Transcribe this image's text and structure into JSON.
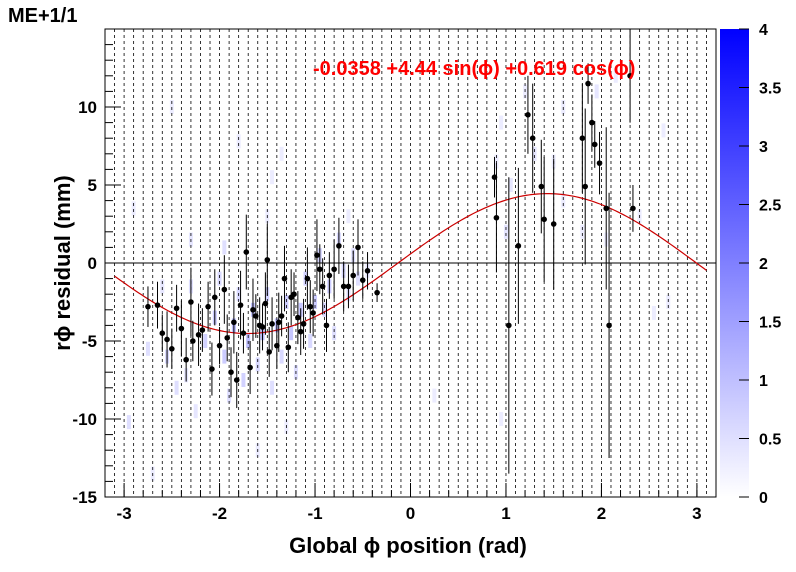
{
  "title": "ME+1/1",
  "fit_label": "-0.0358 +4.44 sin(ϕ) +0.619 cos(ϕ)",
  "colors": {
    "fit": "#cc0000",
    "fit_text": "#ff0000",
    "points": "#000000",
    "palette_max": "#0000ff"
  },
  "chart_data": {
    "type": "scatter",
    "title": "ME+1/1",
    "xlabel": "Global ϕ position (rad)",
    "ylabel": "rϕ residual (mm)",
    "xlim": [
      -3.2,
      3.2
    ],
    "ylim": [
      -15,
      15
    ],
    "x_ticks": [
      -3,
      -2,
      -1,
      0,
      1,
      2,
      3
    ],
    "y_ticks": [
      -15,
      -10,
      -5,
      0,
      5,
      10
    ],
    "x_tick_labels": [
      "-3",
      "-2",
      "-1",
      "0",
      "1",
      "2",
      "3"
    ],
    "y_tick_labels": [
      "-15",
      "-10",
      "-5",
      "0",
      "5",
      "10"
    ],
    "colorbar": {
      "min": 0,
      "max": 4,
      "ticks": [
        0,
        0.5,
        1,
        1.5,
        2,
        2.5,
        3,
        3.5,
        4
      ],
      "tick_labels": [
        "0",
        "0.5",
        "1",
        "1.5",
        "2",
        "2.5",
        "3",
        "3.5",
        "4"
      ]
    },
    "fit": {
      "a": -0.0358,
      "b": 4.44,
      "c": 0.619
    },
    "grid": "vertical dashed",
    "points": [
      {
        "x": -2.75,
        "y": -2.8,
        "err": 1.3
      },
      {
        "x": -2.65,
        "y": -2.7,
        "err": 1.5
      },
      {
        "x": -2.6,
        "y": -4.5,
        "err": 1.2
      },
      {
        "x": -2.55,
        "y": -4.9,
        "err": 1.8
      },
      {
        "x": -2.5,
        "y": -5.5,
        "err": 1.3
      },
      {
        "x": -2.45,
        "y": -2.9,
        "err": 1.5
      },
      {
        "x": -2.4,
        "y": -4.2,
        "err": 1.8
      },
      {
        "x": -2.35,
        "y": -6.2,
        "err": 1.4
      },
      {
        "x": -2.3,
        "y": -2.5,
        "err": 2.2
      },
      {
        "x": -2.28,
        "y": -5.0,
        "err": 1.3
      },
      {
        "x": -2.22,
        "y": -4.6,
        "err": 2.0
      },
      {
        "x": -2.18,
        "y": -4.3,
        "err": 1.4
      },
      {
        "x": -2.12,
        "y": -2.8,
        "err": 1.6
      },
      {
        "x": -2.08,
        "y": -6.8,
        "err": 1.7
      },
      {
        "x": -2.05,
        "y": -2.2,
        "err": 1.8
      },
      {
        "x": -2.0,
        "y": -5.3,
        "err": 1.2
      },
      {
        "x": -1.95,
        "y": -1.7,
        "err": 2.2
      },
      {
        "x": -1.92,
        "y": -4.8,
        "err": 1.5
      },
      {
        "x": -1.88,
        "y": -7.0,
        "err": 1.6
      },
      {
        "x": -1.85,
        "y": -3.8,
        "err": 2.0
      },
      {
        "x": -1.82,
        "y": -7.5,
        "err": 1.8
      },
      {
        "x": -1.78,
        "y": -2.7,
        "err": 2.2
      },
      {
        "x": -1.75,
        "y": -4.5,
        "err": 1.3
      },
      {
        "x": -1.72,
        "y": 0.7,
        "err": 2.4
      },
      {
        "x": -1.68,
        "y": -6.7,
        "err": 1.7
      },
      {
        "x": -1.65,
        "y": -3.0,
        "err": 2.0
      },
      {
        "x": -1.62,
        "y": -3.4,
        "err": 1.4
      },
      {
        "x": -1.58,
        "y": -4.0,
        "err": 1.8
      },
      {
        "x": -1.55,
        "y": -4.1,
        "err": 1.5
      },
      {
        "x": -1.52,
        "y": -2.6,
        "err": 2.0
      },
      {
        "x": -1.5,
        "y": 0.2,
        "err": 2.3
      },
      {
        "x": -1.48,
        "y": -5.7,
        "err": 1.6
      },
      {
        "x": -1.45,
        "y": -3.9,
        "err": 1.7
      },
      {
        "x": -1.4,
        "y": -5.3,
        "err": 1.5
      },
      {
        "x": -1.38,
        "y": -3.8,
        "err": 1.9
      },
      {
        "x": -1.35,
        "y": -3.4,
        "err": 1.3
      },
      {
        "x": -1.32,
        "y": -1.0,
        "err": 2.1
      },
      {
        "x": -1.28,
        "y": -5.4,
        "err": 1.6
      },
      {
        "x": -1.25,
        "y": -2.2,
        "err": 1.8
      },
      {
        "x": -1.22,
        "y": -2.0,
        "err": 1.4
      },
      {
        "x": -1.18,
        "y": -3.5,
        "err": 1.7
      },
      {
        "x": -1.15,
        "y": -4.4,
        "err": 1.5
      },
      {
        "x": -1.12,
        "y": -3.9,
        "err": 1.6
      },
      {
        "x": -1.08,
        "y": -1.0,
        "err": 2.0
      },
      {
        "x": -1.05,
        "y": -2.8,
        "err": 1.7
      },
      {
        "x": -1.02,
        "y": -3.2,
        "err": 1.5
      },
      {
        "x": -0.98,
        "y": 0.5,
        "err": 2.3
      },
      {
        "x": -0.95,
        "y": -0.4,
        "err": 1.6
      },
      {
        "x": -0.92,
        "y": -1.5,
        "err": 1.8
      },
      {
        "x": -0.88,
        "y": -4.0,
        "err": 1.7
      },
      {
        "x": -0.85,
        "y": -0.8,
        "err": 1.5
      },
      {
        "x": -0.8,
        "y": -0.4,
        "err": 1.9
      },
      {
        "x": -0.75,
        "y": 1.1,
        "err": 1.8
      },
      {
        "x": -0.7,
        "y": -1.5,
        "err": 1.6
      },
      {
        "x": -0.65,
        "y": -1.5,
        "err": 1.4
      },
      {
        "x": -0.6,
        "y": -0.8,
        "err": 1.6
      },
      {
        "x": -0.55,
        "y": 1.0,
        "err": 1.8
      },
      {
        "x": -0.5,
        "y": -1.1,
        "err": 1.2
      },
      {
        "x": -0.45,
        "y": -0.5,
        "err": 1.2
      },
      {
        "x": -0.35,
        "y": -1.9,
        "err": 0.6
      },
      {
        "x": 0.88,
        "y": 5.5,
        "err": 1.3
      },
      {
        "x": 0.9,
        "y": 2.9,
        "err": 3.5
      },
      {
        "x": 1.03,
        "y": -4.0,
        "err": 9.5
      },
      {
        "x": 1.13,
        "y": 1.1,
        "err": 5.0
      },
      {
        "x": 1.23,
        "y": 9.5,
        "err": 2.5
      },
      {
        "x": 1.28,
        "y": 8.0,
        "err": 3.5
      },
      {
        "x": 1.37,
        "y": 4.9,
        "err": 3.0
      },
      {
        "x": 1.4,
        "y": 2.8,
        "err": 4.0
      },
      {
        "x": 1.5,
        "y": 2.5,
        "err": 4.2
      },
      {
        "x": 1.8,
        "y": 8.0,
        "err": 3.5
      },
      {
        "x": 1.83,
        "y": 4.9,
        "err": 5.0
      },
      {
        "x": 1.86,
        "y": 11.5,
        "err": 1.3
      },
      {
        "x": 1.9,
        "y": 9.0,
        "err": 1.8
      },
      {
        "x": 1.93,
        "y": 7.6,
        "err": 1.5
      },
      {
        "x": 1.98,
        "y": 6.4,
        "err": 2.0
      },
      {
        "x": 2.05,
        "y": 3.5,
        "err": 5.2
      },
      {
        "x": 2.08,
        "y": -4.0,
        "err": 8.5
      },
      {
        "x": 2.3,
        "y": 12.0,
        "err": 3.0
      },
      {
        "x": 2.33,
        "y": 3.5,
        "err": 1.5
      }
    ],
    "heat_cells": [
      {
        "x": -2.95,
        "y": -10.2,
        "z": 0.5
      },
      {
        "x": -2.7,
        "y": -13.5,
        "z": 0.3
      },
      {
        "x": -2.75,
        "y": -5.5,
        "z": 0.5
      },
      {
        "x": -2.55,
        "y": -6.0,
        "z": 0.6
      },
      {
        "x": -2.45,
        "y": -8.0,
        "z": 0.5
      },
      {
        "x": -2.35,
        "y": -7.2,
        "z": 0.4
      },
      {
        "x": -2.3,
        "y": -1.5,
        "z": 0.5
      },
      {
        "x": -2.25,
        "y": -9.5,
        "z": 0.4
      },
      {
        "x": -2.15,
        "y": -5.0,
        "z": 0.7
      },
      {
        "x": -2.05,
        "y": -3.5,
        "z": 0.8
      },
      {
        "x": -2.0,
        "y": -1.0,
        "z": 0.6
      },
      {
        "x": -1.95,
        "y": -6.0,
        "z": 0.8
      },
      {
        "x": -1.9,
        "y": -8.5,
        "z": 0.5
      },
      {
        "x": -1.85,
        "y": -4.0,
        "z": 1.0
      },
      {
        "x": -1.8,
        "y": -2.0,
        "z": 0.6
      },
      {
        "x": -1.75,
        "y": -7.5,
        "z": 0.7
      },
      {
        "x": -1.7,
        "y": -5.0,
        "z": 1.0
      },
      {
        "x": -1.65,
        "y": -3.0,
        "z": 0.9
      },
      {
        "x": -1.6,
        "y": -6.5,
        "z": 0.6
      },
      {
        "x": -1.55,
        "y": -4.5,
        "z": 1.1
      },
      {
        "x": -1.5,
        "y": -2.0,
        "z": 0.7
      },
      {
        "x": -1.45,
        "y": -8.0,
        "z": 0.5
      },
      {
        "x": -1.4,
        "y": -4.0,
        "z": 1.0
      },
      {
        "x": -1.35,
        "y": -6.0,
        "z": 0.6
      },
      {
        "x": -1.3,
        "y": -2.5,
        "z": 0.8
      },
      {
        "x": -1.25,
        "y": -4.5,
        "z": 0.9
      },
      {
        "x": -1.2,
        "y": -7.0,
        "z": 0.5
      },
      {
        "x": -1.15,
        "y": -3.0,
        "z": 0.9
      },
      {
        "x": -1.1,
        "y": -1.0,
        "z": 0.7
      },
      {
        "x": -1.05,
        "y": -5.0,
        "z": 0.6
      },
      {
        "x": -1.0,
        "y": -2.5,
        "z": 0.8
      },
      {
        "x": -0.95,
        "y": 0.5,
        "z": 0.7
      },
      {
        "x": -0.9,
        "y": -3.0,
        "z": 0.6
      },
      {
        "x": -0.85,
        "y": -1.5,
        "z": 0.8
      },
      {
        "x": -0.8,
        "y": -4.5,
        "z": 0.5
      },
      {
        "x": -0.75,
        "y": 1.5,
        "z": 0.6
      },
      {
        "x": -0.7,
        "y": -0.5,
        "z": 0.6
      },
      {
        "x": -0.65,
        "y": -2.0,
        "z": 0.5
      },
      {
        "x": -0.6,
        "y": 0.5,
        "z": 0.5
      },
      {
        "x": -0.55,
        "y": -1.0,
        "z": 0.5
      },
      {
        "x": -0.45,
        "y": -0.5,
        "z": 0.4
      },
      {
        "x": -1.95,
        "y": 1.0,
        "z": 0.5
      },
      {
        "x": -1.5,
        "y": 3.0,
        "z": 0.3
      },
      {
        "x": -2.3,
        "y": 1.5,
        "z": 0.4
      },
      {
        "x": -2.6,
        "y": -1.5,
        "z": 0.4
      },
      {
        "x": -1.8,
        "y": 7.8,
        "z": 0.3
      },
      {
        "x": -1.6,
        "y": -12.0,
        "z": 0.3
      },
      {
        "x": -1.3,
        "y": -10.5,
        "z": 0.3
      },
      {
        "x": -1.45,
        "y": 5.5,
        "z": 0.3
      },
      {
        "x": 1.05,
        "y": 5.0,
        "z": 0.4
      },
      {
        "x": 1.0,
        "y": 2.0,
        "z": 0.4
      },
      {
        "x": 1.3,
        "y": 7.0,
        "z": 0.4
      },
      {
        "x": 1.5,
        "y": 6.5,
        "z": 0.3
      },
      {
        "x": 1.2,
        "y": 11.0,
        "z": 0.3
      },
      {
        "x": 1.6,
        "y": 10.0,
        "z": 0.3
      },
      {
        "x": 0.95,
        "y": 9.0,
        "z": 0.3
      },
      {
        "x": 1.8,
        "y": 2.0,
        "z": 0.3
      },
      {
        "x": 1.95,
        "y": 11.0,
        "z": 0.4
      },
      {
        "x": 2.15,
        "y": 12.0,
        "z": 0.3
      },
      {
        "x": 2.4,
        "y": 3.0,
        "z": 0.3
      },
      {
        "x": 2.65,
        "y": 8.5,
        "z": 0.3
      },
      {
        "x": 2.7,
        "y": -2.5,
        "z": 0.3
      },
      {
        "x": 2.55,
        "y": -3.2,
        "z": 0.3
      },
      {
        "x": 1.6,
        "y": 4.0,
        "z": 0.3
      },
      {
        "x": 0.9,
        "y": 6.5,
        "z": 0.3
      },
      {
        "x": 2.05,
        "y": 1.5,
        "z": 0.3
      },
      {
        "x": 0.25,
        "y": -8.5,
        "z": 0.3
      },
      {
        "x": 0.95,
        "y": -10.0,
        "z": 0.3
      },
      {
        "x": -0.65,
        "y": 3.0,
        "z": 0.3
      },
      {
        "x": -2.9,
        "y": 3.5,
        "z": 0.3
      },
      {
        "x": -2.5,
        "y": 10.0,
        "z": 0.3
      },
      {
        "x": -1.35,
        "y": 7.0,
        "z": 0.3
      }
    ]
  }
}
